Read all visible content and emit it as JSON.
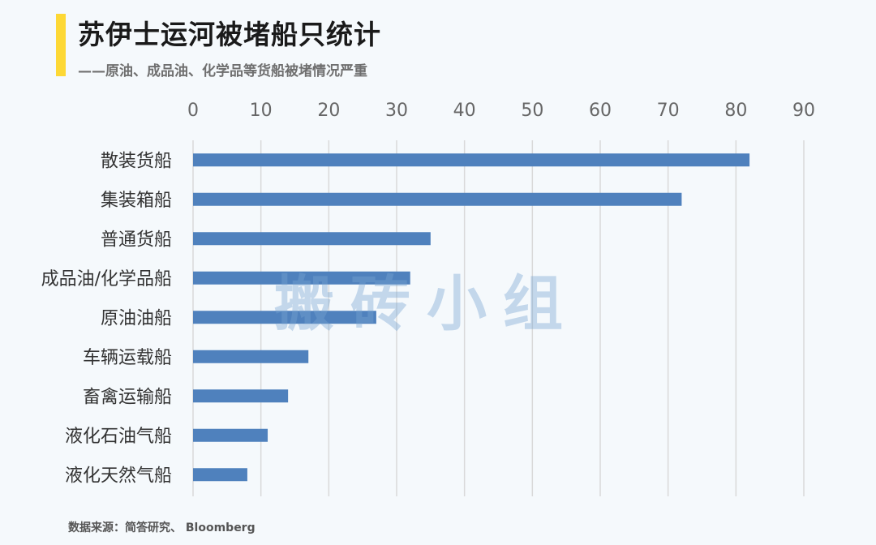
{
  "header": {
    "title": "苏伊士运河被堵船只统计",
    "subtitle": "——原油、成品油、化学品等货船被堵情况严重"
  },
  "footer": {
    "source": "数据来源：简答研究、 Bloomberg"
  },
  "watermark": "搬砖小组",
  "colors": {
    "bar": "#4f81bd",
    "accent": "#fdd835",
    "grid": "#d9d9d9",
    "background": "#f5f9fc"
  },
  "chart_data": {
    "type": "bar",
    "orientation": "horizontal",
    "title": "苏伊士运河被堵船只统计",
    "subtitle": "——原油、成品油、化学品等货船被堵情况严重",
    "categories": [
      "散装货船",
      "集装箱船",
      "普通货船",
      "成品油/化学品船",
      "原油油船",
      "车辆运载船",
      "畜禽运输船",
      "液化石油气船",
      "液化天然气船"
    ],
    "values": [
      82,
      72,
      35,
      32,
      27,
      17,
      14,
      11,
      8
    ],
    "xlim": [
      0,
      90
    ],
    "xticks": [
      0,
      10,
      20,
      30,
      40,
      50,
      60,
      70,
      80,
      90
    ],
    "xaxis_position": "top",
    "grid": true,
    "legend": "none"
  }
}
